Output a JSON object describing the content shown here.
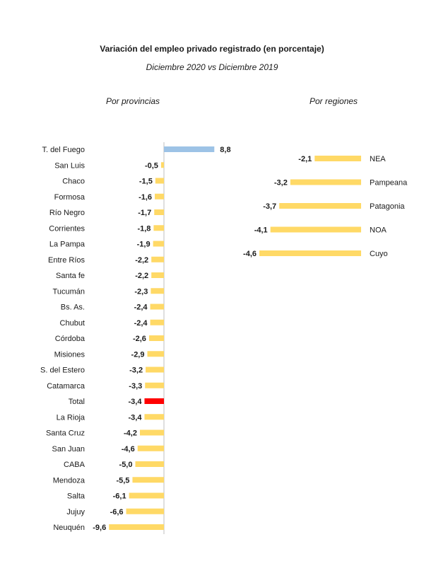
{
  "chart_data": [
    {
      "type": "bar",
      "orientation": "horizontal",
      "title": "Variación del empleo privado registrado (en porcentaje)",
      "subtitle": "Diciembre 2020 vs Diciembre 2019",
      "panel_title": "Por provincias",
      "categories": [
        "T. del Fuego",
        "San Luis",
        "Chaco",
        "Formosa",
        "Río Negro",
        "Corrientes",
        "La Pampa",
        "Entre Ríos",
        "Santa fe",
        "Tucumán",
        "Bs. As.",
        "Chubut",
        "Córdoba",
        "Misiones",
        "S. del Estero",
        "Catamarca",
        "Total",
        "La Rioja",
        "Santa Cruz",
        "San Juan",
        "CABA",
        "Mendoza",
        "Salta",
        "Jujuy",
        "Neuquén"
      ],
      "values": [
        8.8,
        -0.5,
        -1.5,
        -1.6,
        -1.7,
        -1.8,
        -1.9,
        -2.2,
        -2.2,
        -2.3,
        -2.4,
        -2.4,
        -2.6,
        -2.9,
        -3.2,
        -3.3,
        -3.4,
        -3.4,
        -4.2,
        -4.6,
        -5.0,
        -5.5,
        -6.1,
        -6.6,
        -9.6
      ],
      "value_labels": [
        "8,8",
        "-0,5",
        "-1,5",
        "-1,6",
        "-1,7",
        "-1,8",
        "-1,9",
        "-2,2",
        "-2,2",
        "-2,3",
        "-2,4",
        "-2,4",
        "-2,6",
        "-2,9",
        "-3,2",
        "-3,3",
        "-3,4",
        "-3,4",
        "-4,2",
        "-4,6",
        "-5,0",
        "-5,5",
        "-6,1",
        "-6,6",
        "-9,6"
      ],
      "colors": {
        "positive": "#9dc3e6",
        "negative": "#ffd966",
        "total": "#ff0000"
      },
      "highlight_category": "Total",
      "xlim": [
        -9.6,
        8.8
      ],
      "grid": false,
      "legend": "none"
    },
    {
      "type": "bar",
      "orientation": "horizontal",
      "panel_title": "Por regiones",
      "categories": [
        "NEA",
        "Pampeana",
        "Patagonia",
        "NOA",
        "Cuyo"
      ],
      "values": [
        -2.1,
        -3.2,
        -3.7,
        -4.1,
        -4.6
      ],
      "value_labels": [
        "-2,1",
        "-3,2",
        "-3,7",
        "-4,1",
        "-4,6"
      ],
      "colors": {
        "negative": "#ffd966"
      },
      "xlim": [
        -4.6,
        0
      ],
      "grid": false,
      "legend": "none"
    }
  ]
}
